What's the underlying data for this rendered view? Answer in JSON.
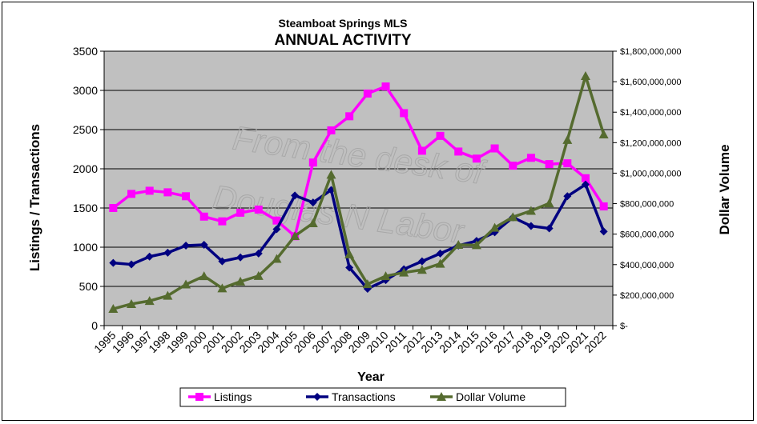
{
  "chart_data": {
    "type": "line",
    "subtitle": "Steamboat Springs MLS",
    "title": "ANNUAL ACTIVITY",
    "xlabel": "Year",
    "ylabel_left": "Listings / Transactions",
    "ylabel_right": "Dollar Volume",
    "watermark": [
      "From the desk of",
      "Douglas N Labor"
    ],
    "categories": [
      "1995",
      "1996",
      "1997",
      "1998",
      "1999",
      "2000",
      "2001",
      "2002",
      "2003",
      "2004",
      "2005",
      "2006",
      "2007",
      "2008",
      "2009",
      "2010",
      "2011",
      "2012",
      "2013",
      "2014",
      "2015",
      "2016",
      "2017",
      "2018",
      "2019",
      "2020",
      "2021",
      "2022"
    ],
    "ylim_left": [
      0,
      3500
    ],
    "yticks_left": [
      "0",
      "500",
      "1000",
      "1500",
      "2000",
      "2500",
      "3000",
      "3500"
    ],
    "ylim_right": [
      0,
      1800000000
    ],
    "yticks_right": [
      "$-",
      "$200,000,000",
      "$400,000,000",
      "$600,000,000",
      "$800,000,000",
      "$1,000,000,000",
      "$1,200,000,000",
      "$1,400,000,000",
      "$1,600,000,000",
      "$1,800,000,000"
    ],
    "plot_background": "#c0c0c0",
    "grid": "horizontal",
    "legend_position": "bottom",
    "series": [
      {
        "name": "Listings",
        "axis": "left",
        "marker": "square",
        "color": "#ff00ff",
        "values": [
          1500,
          1680,
          1720,
          1700,
          1650,
          1390,
          1330,
          1440,
          1480,
          1340,
          1140,
          2080,
          2490,
          2670,
          2960,
          3050,
          2710,
          2230,
          2420,
          2220,
          2130,
          2260,
          2040,
          2140,
          2060,
          2070,
          1880,
          1520
        ]
      },
      {
        "name": "Transactions",
        "axis": "left",
        "marker": "diamond",
        "color": "#000080",
        "values": [
          800,
          780,
          880,
          930,
          1020,
          1030,
          820,
          870,
          920,
          1230,
          1660,
          1570,
          1730,
          740,
          470,
          580,
          720,
          820,
          920,
          1020,
          1080,
          1190,
          1380,
          1270,
          1240,
          1650,
          1800,
          1200
        ]
      },
      {
        "name": "Dollar Volume",
        "axis": "right",
        "marker": "triangle",
        "color": "#556b2f",
        "values": [
          110000000,
          142000000,
          162000000,
          196000000,
          270000000,
          325000000,
          245000000,
          289000000,
          326000000,
          438000000,
          588000000,
          672000000,
          990000000,
          468000000,
          272000000,
          325000000,
          348000000,
          366000000,
          406000000,
          530000000,
          528000000,
          642000000,
          712000000,
          753000000,
          802000000,
          1218000000,
          1637000000,
          1254000000
        ]
      }
    ]
  }
}
